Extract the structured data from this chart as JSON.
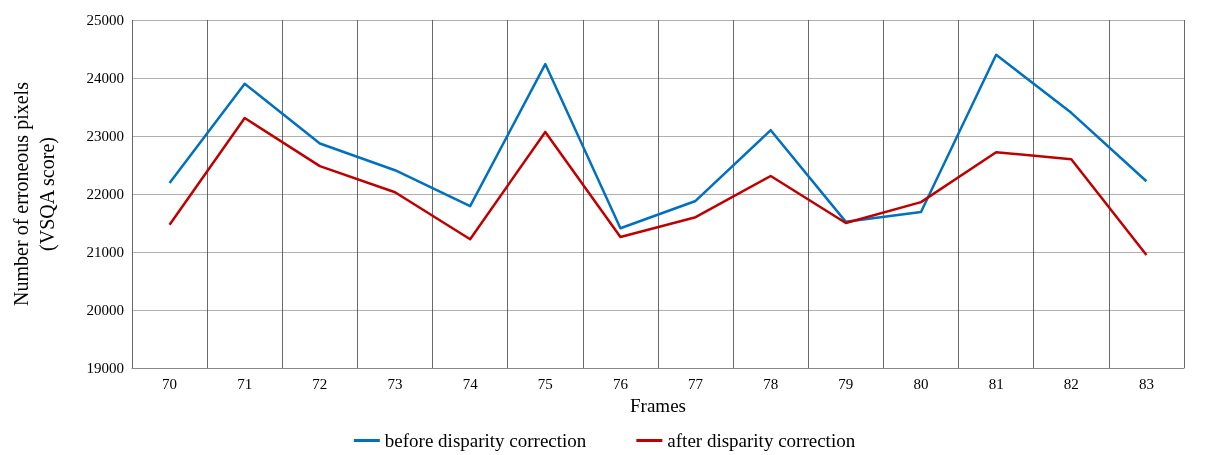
{
  "chart_data": {
    "type": "line",
    "xlabel": "Frames",
    "ylabel": "Number of erroneous pixels\n(VSQA score)",
    "categories": [
      "70",
      "71",
      "72",
      "73",
      "74",
      "75",
      "76",
      "77",
      "78",
      "79",
      "80",
      "81",
      "82",
      "83"
    ],
    "series": [
      {
        "name": "before disparity correction",
        "color": "#0070c0",
        "values": [
          22190,
          23900,
          22870,
          22410,
          21790,
          24240,
          21410,
          21880,
          23100,
          21520,
          21690,
          24400,
          23400,
          22220
        ]
      },
      {
        "name": "after disparity correction",
        "color": "#c00000",
        "values": [
          21470,
          23310,
          22480,
          22030,
          21220,
          23070,
          21260,
          21600,
          22310,
          21500,
          21860,
          22720,
          22600,
          20950
        ]
      }
    ],
    "ylim": [
      19000,
      25000
    ],
    "yticks": [
      19000,
      20000,
      21000,
      22000,
      23000,
      24000,
      25000
    ],
    "grid": true,
    "legend": "bottom",
    "marker": "none",
    "line_style": "solid"
  }
}
